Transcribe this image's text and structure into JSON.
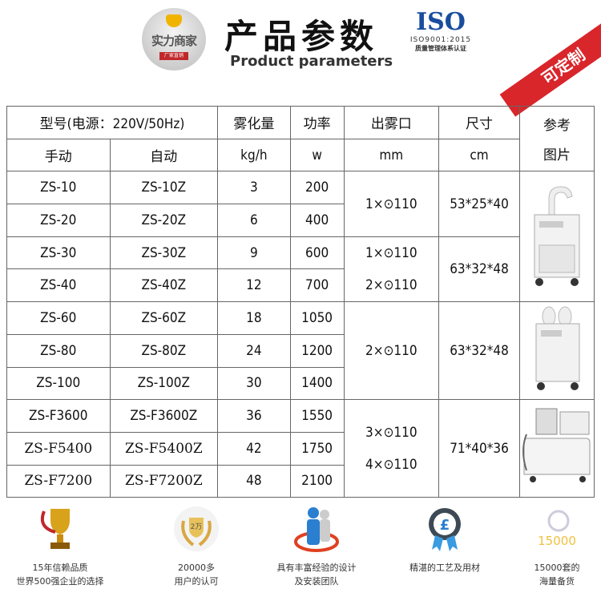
{
  "header": {
    "logo_text": "实力商家",
    "logo_sub": "厂家直销",
    "title": "产品参数",
    "subtitle": "Product parameters",
    "iso_logo": "ISO",
    "iso_cert": "ISO9001:2015",
    "iso_desc": "质量管理体系认证",
    "ribbon": "可定制"
  },
  "table": {
    "headers": {
      "model": "型号(电源：220V/50Hz)",
      "atomization": "雾化量",
      "power": "功率",
      "outlet": "出雾口",
      "size": "尺寸",
      "picture_1": "参考",
      "picture_2": "图片"
    },
    "subheaders": {
      "manual": "手动",
      "auto": "自动",
      "atom_unit": "kg/h",
      "power_unit": "w",
      "outlet_unit": "mm",
      "size_unit": "cm"
    },
    "rows": [
      {
        "manual": "ZS-10",
        "auto": "ZS-10Z",
        "kg": "3",
        "w": "200"
      },
      {
        "manual": "ZS-20",
        "auto": "ZS-20Z",
        "kg": "6",
        "w": "400"
      },
      {
        "manual": "ZS-30",
        "auto": "ZS-30Z",
        "kg": "9",
        "w": "600"
      },
      {
        "manual": "ZS-40",
        "auto": "ZS-40Z",
        "kg": "12",
        "w": "700"
      },
      {
        "manual": "ZS-60",
        "auto": "ZS-60Z",
        "kg": "18",
        "w": "1050"
      },
      {
        "manual": "ZS-80",
        "auto": "ZS-80Z",
        "kg": "24",
        "w": "1200"
      },
      {
        "manual": "ZS-100",
        "auto": "ZS-100Z",
        "kg": "30",
        "w": "1400"
      },
      {
        "manual": "ZS-F3600",
        "auto": "ZS-F3600Z",
        "kg": "36",
        "w": "1550"
      },
      {
        "manual": "ZS-F5400",
        "auto": "ZS-F5400Z",
        "kg": "42",
        "w": "1750"
      },
      {
        "manual": "ZS-F7200",
        "auto": "ZS-F7200Z",
        "kg": "48",
        "w": "2100"
      }
    ],
    "groups": [
      {
        "outlet": [
          "1×⊙110"
        ],
        "size": "53*25*40"
      },
      {
        "outlet": [
          "1×⊙110",
          "2×⊙110"
        ],
        "size": "63*32*48"
      },
      {
        "outlet": [
          "2×⊙110"
        ],
        "size": "63*32*48"
      },
      {
        "outlet": [
          "3×⊙110",
          "4×⊙110"
        ],
        "size": "71*40*36"
      }
    ]
  },
  "features": [
    {
      "icon": "trophy-icon",
      "line1": "15年信赖品质",
      "line2": "世界500强企业的选择"
    },
    {
      "icon": "laurel-badge-icon",
      "badge": "2万",
      "line1": "20000多",
      "line2": "用户的认可"
    },
    {
      "icon": "team-icon",
      "line1": "具有丰富经验的设计",
      "line2": "及安装团队"
    },
    {
      "icon": "medal-icon",
      "line1": "精湛的工艺及用材",
      "line2": ""
    },
    {
      "icon": "magnifier-icon",
      "badge": "15000",
      "line1": "15000套的",
      "line2": "海量备货"
    }
  ]
}
